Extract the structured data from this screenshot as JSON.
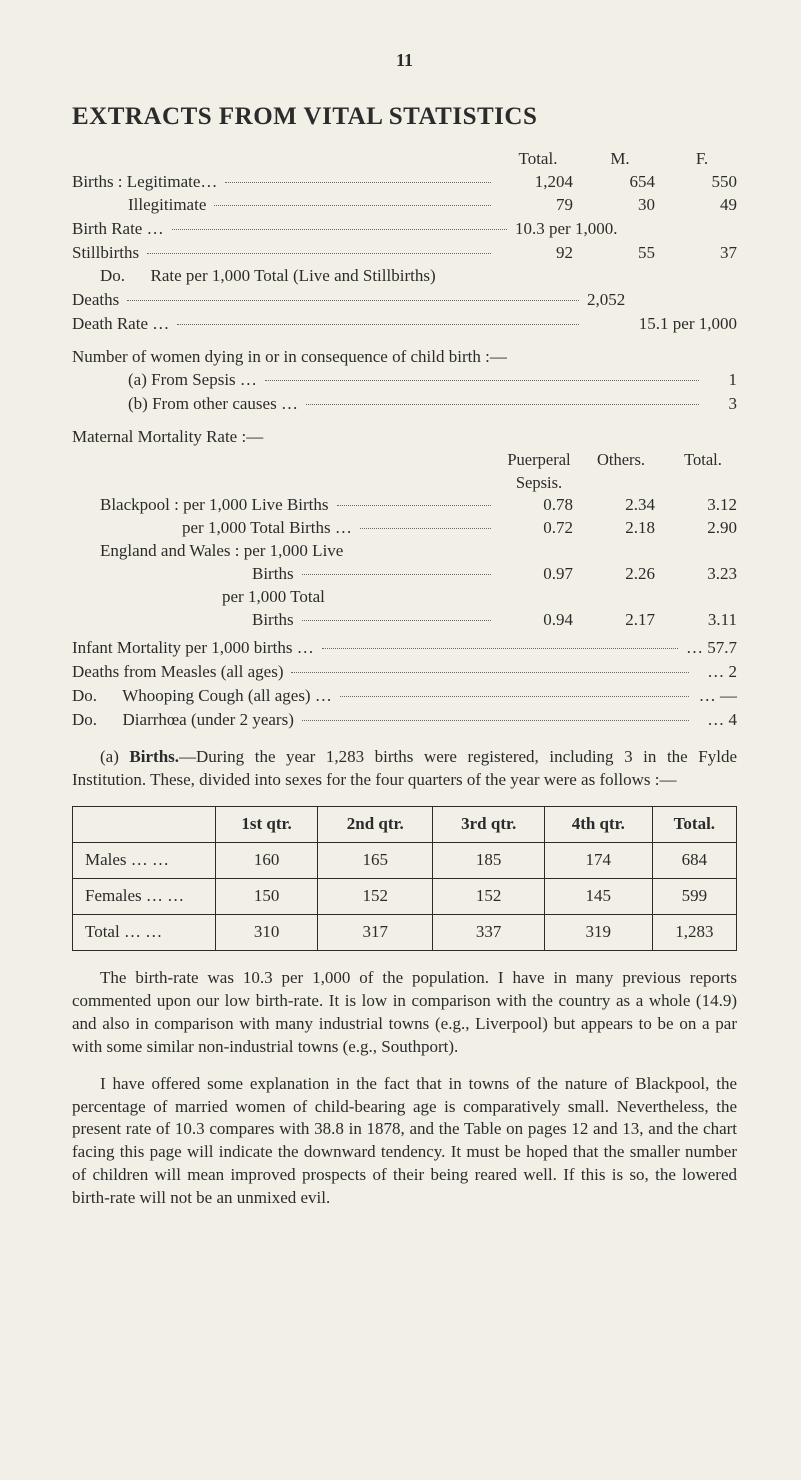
{
  "page_number": "11",
  "title": "EXTRACTS FROM VITAL STATISTICS",
  "top": {
    "hdr": {
      "total": "Total.",
      "m": "M.",
      "f": "F."
    },
    "rows": [
      {
        "label": "Births : Legitimate…",
        "total": "1,204",
        "m": "654",
        "f": "550"
      },
      {
        "label": "Illegitimate",
        "indent": true,
        "total": "79",
        "m": "30",
        "f": "49"
      }
    ],
    "birth_rate": {
      "label": "Birth Rate …",
      "value": "10.3 per 1,000."
    },
    "stillbirths": {
      "label": "Stillbirths",
      "total": "92",
      "m": "55",
      "f": "37"
    },
    "do_line": "Do.      Rate per 1,000 Total (Live and Stillbirths)",
    "deaths": {
      "label": "Deaths",
      "value": "2,052"
    },
    "death_rate": {
      "label": "Death Rate …",
      "value": "15.1 per 1,000"
    }
  },
  "women": {
    "intro": "Number of women dying in or in consequence of child birth :—",
    "a": {
      "label": "(a) From Sepsis …",
      "value": "1"
    },
    "b": {
      "label": "(b) From other causes …",
      "value": "3"
    }
  },
  "maternal": {
    "heading": "Maternal Mortality Rate :—",
    "hdr": {
      "c1": "Puerperal Sepsis.",
      "c2": "Others.",
      "c3": "Total."
    },
    "rows": [
      {
        "label": "Blackpool :  per 1,000 Live Births",
        "c1": "0.78",
        "c2": "2.34",
        "c3": "3.12"
      },
      {
        "label": "per 1,000 Total Births …",
        "sub": true,
        "c1": "0.72",
        "c2": "2.18",
        "c3": "2.90"
      }
    ],
    "eng_label": "England and Wales : per 1,000 Live",
    "eng_rows": [
      {
        "label": "Births",
        "c1": "0.97",
        "c2": "2.26",
        "c3": "3.23"
      },
      {
        "label2": "per 1,000 Total"
      },
      {
        "label": "Births",
        "c1": "0.94",
        "c2": "2.17",
        "c3": "3.11"
      }
    ]
  },
  "infant": {
    "rows": [
      {
        "label": "Infant Mortality per 1,000 births …",
        "value": "… 57.7"
      },
      {
        "label": "Deaths from Measles (all ages)",
        "value": "…   2"
      },
      {
        "label": "Do.      Whooping Cough (all ages) …",
        "value": "…  —"
      },
      {
        "label": "Do.      Diarrhœa (under 2 years)",
        "value": "…   4"
      }
    ]
  },
  "births_para": "(a) <b>Births.</b>—During the year 1,283 births were registered, including 3 in the Fylde Institution. These, divided into sexes for the four quarters of the year were as follows :—",
  "qtr_table": {
    "columns": [
      "",
      "1st qtr.",
      "2nd qtr.",
      "3rd qtr.",
      "4th qtr.",
      "Total."
    ],
    "rows": [
      [
        "Males   …   …",
        "160",
        "165",
        "185",
        "174",
        "684"
      ],
      [
        "Females …   …",
        "150",
        "152",
        "152",
        "145",
        "599"
      ],
      [
        "Total …   …",
        "310",
        "317",
        "337",
        "319",
        "1,283"
      ]
    ]
  },
  "para2": "The birth-rate was 10.3 per 1,000 of the population. I have in many previous reports commented upon our low birth-rate. It is low in comparison with the country as a whole (14.9) and also in comparison with many industrial towns (e.g., Liverpool) but appears to be on a par with some similar non-industrial towns (e.g., Southport).",
  "para3": "I have offered some explanation in the fact that in towns of the nature of Blackpool, the percentage of married women of child-bearing age is comparatively small. Nevertheless, the present rate of 10.3 compares with 38.8 in 1878, and the Table on pages 12 and 13, and the chart facing this page will indicate the downward tendency. It must be hoped that the smaller number of children will mean improved prospects of their being reared well. If this is so, the lowered birth-rate will not be an unmixed evil."
}
